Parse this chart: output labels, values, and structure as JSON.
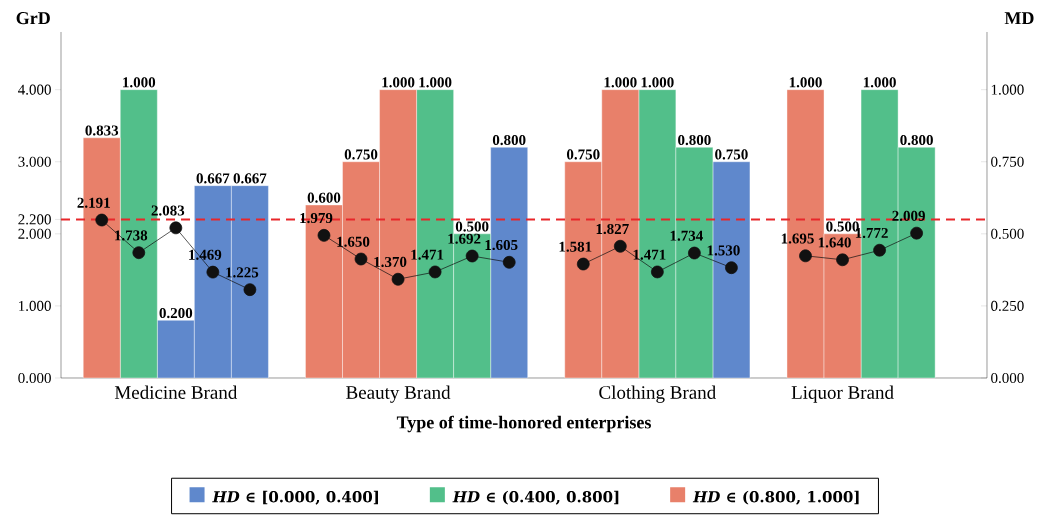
{
  "chart_data": {
    "type": "bar",
    "xlabel": "Type of time-honored enterprises",
    "ylabel": "GrD",
    "y2label": "MD",
    "categories": [
      null,
      null,
      "Medicine Brand",
      null,
      null,
      null,
      null,
      null,
      "Beauty Brand",
      null,
      null,
      null,
      null,
      null,
      null,
      "Clothing Brand",
      null,
      null,
      null,
      null,
      "Liquor Brand",
      null,
      null
    ],
    "ylim": [
      0,
      4.8
    ],
    "yticks": [
      {
        "value": 0,
        "label": "0.000"
      },
      {
        "value": 1,
        "label": "1.000"
      },
      {
        "value": 2,
        "label": "2.000"
      },
      {
        "value": 2.2,
        "label": "2.200"
      },
      {
        "value": 3,
        "label": "3.000"
      },
      {
        "value": 4,
        "label": "4.000"
      }
    ],
    "y2lim": [
      0,
      1.2
    ],
    "y2ticks": [
      {
        "value": 0,
        "label": "0.000"
      },
      {
        "value": 0.25,
        "label": "0.250"
      },
      {
        "value": 0.5,
        "label": "0.500"
      },
      {
        "value": 0.75,
        "label": "0.750"
      },
      {
        "value": 1,
        "label": "1.000"
      }
    ],
    "legend": "bottom",
    "marker": "circle",
    "ref_lines": [
      {
        "axis": "y",
        "value": 2.2,
        "color": "#e8262a",
        "line_style": "dashed"
      }
    ],
    "series": [
      {
        "axis": "y2",
        "name": "*HD* ∈ [0.000, 0.400]",
        "color": "#5f88cc",
        "values": [
          null,
          null,
          0.2,
          0.667,
          0.667,
          null,
          null,
          null,
          null,
          null,
          null,
          0.8,
          null,
          null,
          null,
          null,
          null,
          0.75,
          null,
          null,
          null,
          null,
          null
        ],
        "value_labels": [
          null,
          null,
          "0.200",
          "0.667",
          "0.667",
          null,
          null,
          null,
          null,
          null,
          null,
          "0.800",
          null,
          null,
          null,
          null,
          null,
          "0.750",
          null,
          null,
          null,
          null,
          null
        ]
      },
      {
        "axis": "y2",
        "name": "*HD* ∈ (0.400, 0.800]",
        "color": "#52bf8a",
        "values": [
          null,
          1,
          null,
          null,
          null,
          null,
          null,
          null,
          null,
          1,
          0.5,
          null,
          null,
          null,
          null,
          1,
          0.8,
          null,
          null,
          null,
          null,
          1,
          0.8
        ],
        "value_labels": [
          null,
          "1.000",
          null,
          null,
          null,
          null,
          null,
          null,
          null,
          "1.000",
          "0.500",
          null,
          null,
          null,
          null,
          "1.000",
          "0.800",
          null,
          null,
          null,
          null,
          "1.000",
          "0.800"
        ]
      },
      {
        "axis": "y2",
        "name": "*HD* ∈ (0.800, 1.000]",
        "color": "#e8806a",
        "values": [
          0.833,
          null,
          null,
          null,
          null,
          null,
          0.6,
          0.75,
          1,
          null,
          null,
          null,
          null,
          0.75,
          1,
          null,
          null,
          null,
          null,
          1,
          0.5,
          null,
          null
        ],
        "value_labels": [
          "0.833",
          null,
          null,
          null,
          null,
          null,
          "0.600",
          "0.750",
          "1.000",
          null,
          null,
          null,
          null,
          "0.750",
          "1.000",
          null,
          null,
          null,
          null,
          "1.000",
          "0.500",
          null,
          null
        ]
      },
      {
        "type": "line",
        "axis": "y",
        "color": "#111111",
        "values": [
          2.191,
          1.738,
          2.083,
          1.469,
          1.225,
          null,
          1.979,
          1.65,
          1.37,
          1.471,
          1.692,
          1.605,
          null,
          1.581,
          1.827,
          1.471,
          1.734,
          1.53,
          null,
          1.695,
          1.64,
          1.772,
          2.009
        ],
        "value_labels": [
          "2.191",
          "1.738",
          "2.083",
          "1.469",
          "1.225",
          null,
          "1.979",
          "1.650",
          "1.370",
          "1.471",
          "1.692",
          "1.605",
          null,
          "1.581",
          "1.827",
          "1.471",
          "1.734",
          "1.530",
          null,
          "1.695",
          "1.640",
          "1.772",
          "2.009"
        ]
      }
    ]
  }
}
